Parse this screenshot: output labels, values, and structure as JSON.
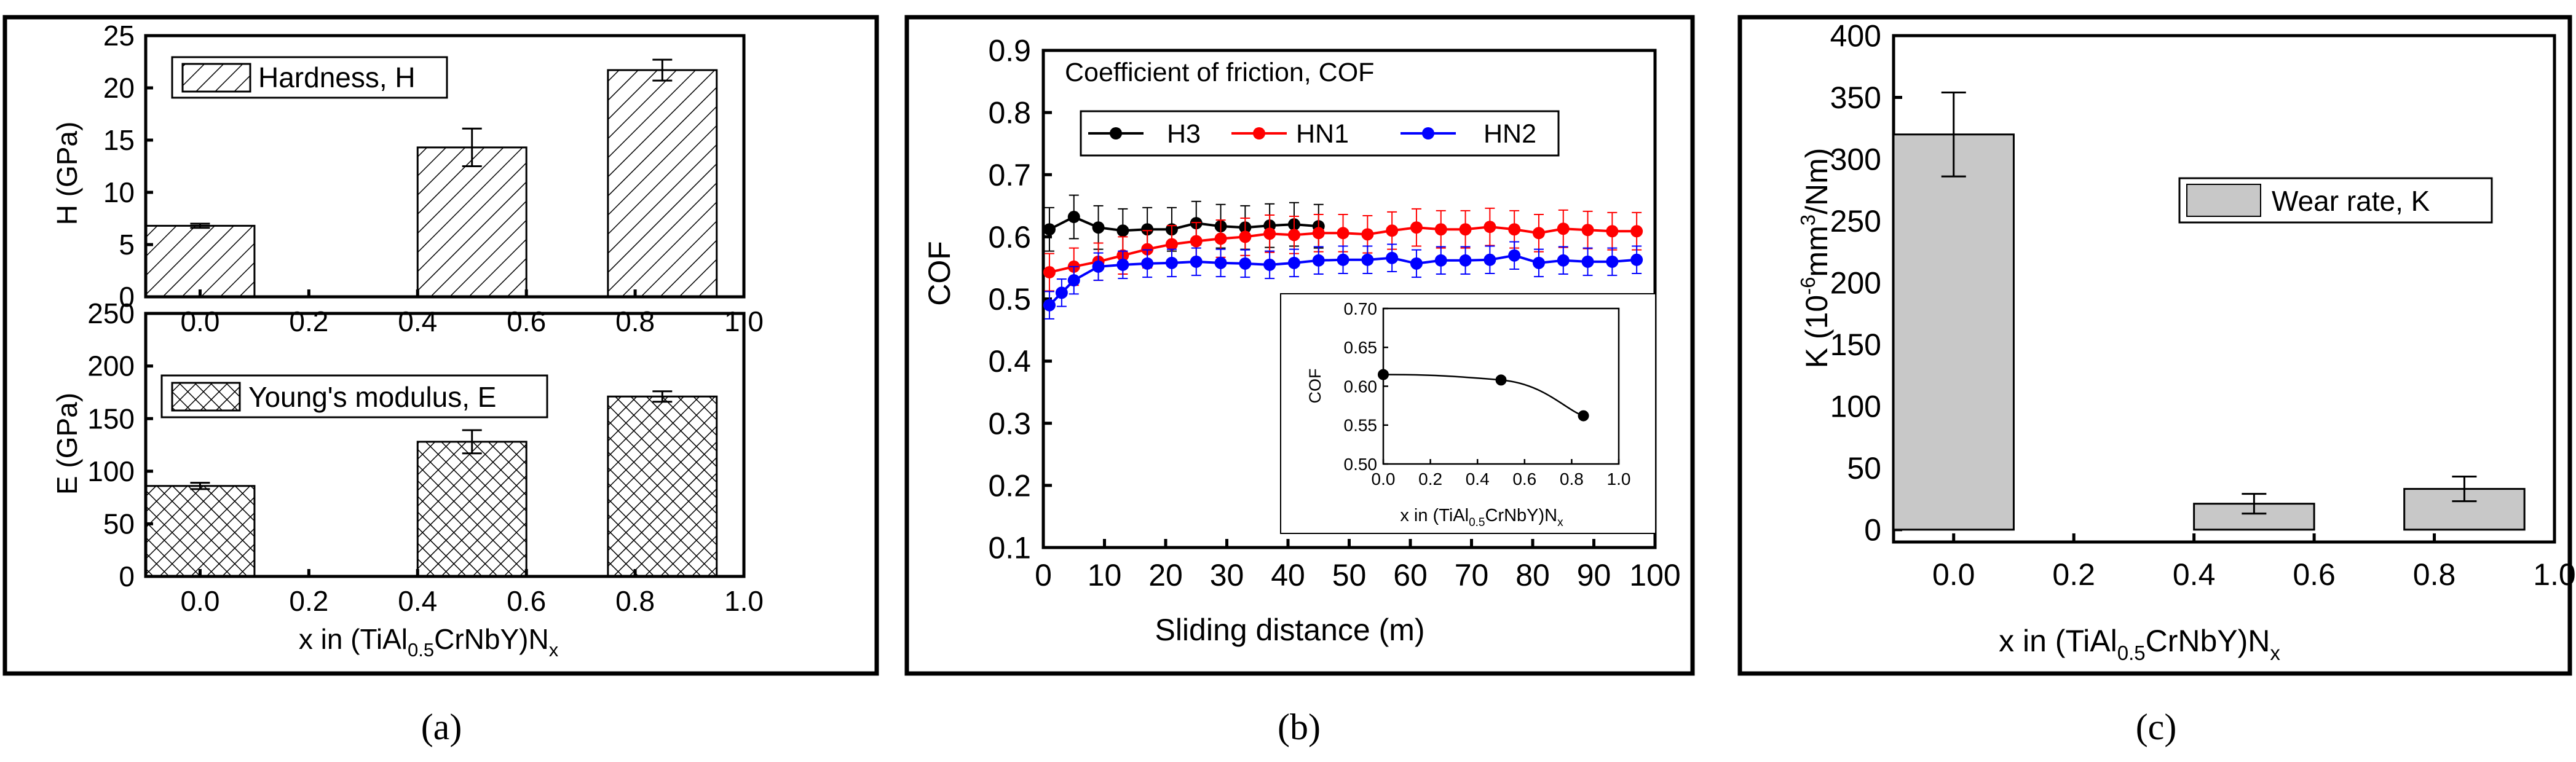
{
  "colors": {
    "black": "#000000",
    "red": "#ff0000",
    "blue": "#0000ff",
    "gray": "#c8c8c8"
  },
  "chart_data": [
    {
      "type": "bar",
      "panel": "a-top",
      "title": "",
      "xlabel": "",
      "ylabel": "H (GPa)",
      "xlim": [
        -0.1,
        1.0
      ],
      "ylim": [
        0,
        25
      ],
      "xticks": [
        "0.0",
        "0.2",
        "0.4",
        "0.6",
        "0.8",
        "1.0"
      ],
      "yticks": [
        "0",
        "5",
        "10",
        "15",
        "20",
        "25"
      ],
      "legend": "Hardness, H",
      "pattern": "hatch",
      "x": [
        0.0,
        0.5,
        0.85
      ],
      "values": [
        6.8,
        14.3,
        21.7
      ],
      "errors": [
        0.2,
        1.8,
        1.0
      ]
    },
    {
      "type": "bar",
      "panel": "a-bottom",
      "title": "",
      "xlabel": "x in (TiAl0.5CrNbY)Nx",
      "xlabel_parts": {
        "pre": "x in (TiAl",
        "sub1": "0.5",
        "mid": "CrNbY)N",
        "sub2": "x"
      },
      "ylabel": "E (GPa)",
      "xlim": [
        -0.1,
        1.0
      ],
      "ylim": [
        0,
        250
      ],
      "xticks": [
        "0.0",
        "0.2",
        "0.4",
        "0.6",
        "0.8",
        "1.0"
      ],
      "yticks": [
        "0",
        "50",
        "100",
        "150",
        "200",
        "250"
      ],
      "legend": "Young's modulus, E",
      "pattern": "crosshatch",
      "x": [
        0.0,
        0.5,
        0.85
      ],
      "values": [
        86,
        128,
        171
      ],
      "errors": [
        3,
        11,
        5
      ]
    },
    {
      "type": "line",
      "panel": "b",
      "title": "Coefficient of friction, COF",
      "xlabel": "Sliding distance (m)",
      "ylabel": "COF",
      "xlim": [
        0,
        100
      ],
      "ylim": [
        0.1,
        0.9
      ],
      "xticks": [
        "0",
        "10",
        "20",
        "30",
        "40",
        "50",
        "60",
        "70",
        "80",
        "90",
        "100"
      ],
      "yticks": [
        "0.1",
        "0.2",
        "0.3",
        "0.4",
        "0.5",
        "0.6",
        "0.7",
        "0.8",
        "0.9"
      ],
      "legend_position": "top-left",
      "series": [
        {
          "name": "H3",
          "color": "#000000",
          "x": [
            1,
            5,
            9,
            13,
            17,
            21,
            25,
            29,
            33,
            37,
            41,
            45
          ],
          "values": [
            0.612,
            0.632,
            0.615,
            0.61,
            0.612,
            0.612,
            0.622,
            0.617,
            0.615,
            0.618,
            0.62,
            0.617
          ],
          "error": 0.035
        },
        {
          "name": "HN1",
          "color": "#ff0000",
          "x": [
            1,
            5,
            9,
            13,
            17,
            21,
            25,
            29,
            33,
            37,
            41,
            45,
            49,
            53,
            57,
            61,
            65,
            69,
            73,
            77,
            81,
            85,
            89,
            93,
            97
          ],
          "values": [
            0.543,
            0.552,
            0.56,
            0.57,
            0.58,
            0.588,
            0.593,
            0.597,
            0.6,
            0.605,
            0.603,
            0.606,
            0.606,
            0.604,
            0.61,
            0.615,
            0.612,
            0.612,
            0.616,
            0.612,
            0.606,
            0.613,
            0.611,
            0.609,
            0.609
          ],
          "error": 0.03
        },
        {
          "name": "HN2",
          "color": "#0000ff",
          "x": [
            1,
            3,
            5,
            9,
            13,
            17,
            21,
            25,
            29,
            33,
            37,
            41,
            45,
            49,
            53,
            57,
            61,
            65,
            69,
            73,
            77,
            81,
            85,
            89,
            93,
            97
          ],
          "values": [
            0.49,
            0.51,
            0.53,
            0.552,
            0.555,
            0.557,
            0.558,
            0.56,
            0.558,
            0.557,
            0.555,
            0.558,
            0.562,
            0.563,
            0.563,
            0.566,
            0.557,
            0.562,
            0.562,
            0.563,
            0.57,
            0.558,
            0.562,
            0.56,
            0.56,
            0.563
          ],
          "error": 0.022
        }
      ],
      "inset": {
        "type": "line",
        "xlabel": "x in (TiAl0.5CrNbY)Nx",
        "xlabel_parts": {
          "pre": "x in (TiAl",
          "sub1": "0.5",
          "mid": "CrNbY)N",
          "sub2": "x"
        },
        "ylabel": "COF",
        "xlim": [
          0,
          1.0
        ],
        "ylim": [
          0.5,
          0.7
        ],
        "xticks": [
          "0.0",
          "0.2",
          "0.4",
          "0.6",
          "0.8",
          "1.0"
        ],
        "yticks": [
          "0.50",
          "0.55",
          "0.60",
          "0.65",
          "0.70"
        ],
        "x": [
          0.0,
          0.5,
          0.85
        ],
        "values": [
          0.615,
          0.608,
          0.562
        ],
        "errors": [
          0.003,
          0.004,
          0.003
        ]
      }
    },
    {
      "type": "bar",
      "panel": "c",
      "title": "",
      "xlabel": "x in (TiAl0.5CrNbY)Nx",
      "xlabel_parts": {
        "pre": "x in (TiAl",
        "sub1": "0.5",
        "mid": "CrNbY)N",
        "sub2": "x"
      },
      "ylabel": "K (10^-6 mm^3/Nm)",
      "ylabel_parts": {
        "a": "K (10",
        "sup1": "-6",
        "b": "mm",
        "sup2": "3",
        "c": "/Nm)"
      },
      "xlim": [
        -0.1,
        1.0
      ],
      "ylim": [
        -10,
        400
      ],
      "xticks": [
        "0.0",
        "0.2",
        "0.4",
        "0.6",
        "0.8",
        "1.0"
      ],
      "yticks": [
        "0",
        "50",
        "100",
        "150",
        "200",
        "250",
        "300",
        "350",
        "400"
      ],
      "legend": "Wear rate, K",
      "pattern": "solid",
      "x": [
        0.0,
        0.5,
        0.85
      ],
      "values": [
        320,
        21,
        33
      ],
      "errors": [
        34,
        8,
        10
      ]
    }
  ],
  "captions": {
    "a": "(a)",
    "b": "(b)",
    "c": "(c)"
  }
}
